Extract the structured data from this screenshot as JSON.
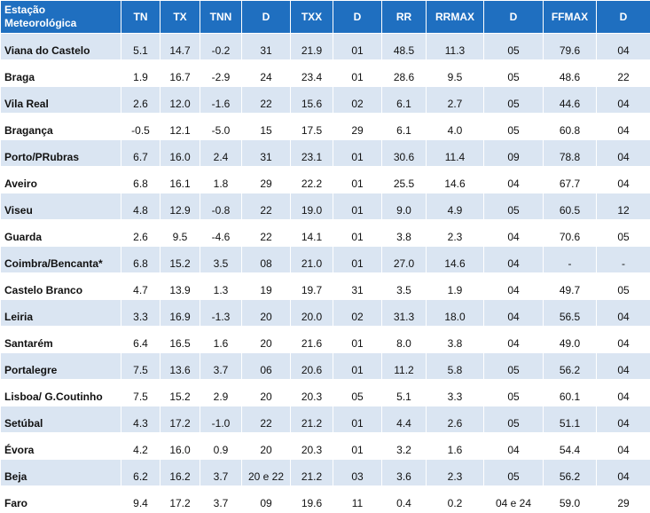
{
  "table": {
    "header": [
      "Estação Meteorológica",
      "TN",
      "TX",
      "TNN",
      "D",
      "TXX",
      "D",
      "RR",
      "RRMAX",
      "D",
      "FFMAX",
      "D"
    ],
    "rows": [
      [
        "Viana do Castelo",
        "5.1",
        "14.7",
        "-0.2",
        "31",
        "21.9",
        "01",
        "48.5",
        "11.3",
        "05",
        "79.6",
        "04"
      ],
      [
        "Braga",
        "1.9",
        "16.7",
        "-2.9",
        "24",
        "23.4",
        "01",
        "28.6",
        "9.5",
        "05",
        "48.6",
        "22"
      ],
      [
        "Vila Real",
        "2.6",
        "12.0",
        "-1.6",
        "22",
        "15.6",
        "02",
        "6.1",
        "2.7",
        "05",
        "44.6",
        "04"
      ],
      [
        "Bragança",
        "-0.5",
        "12.1",
        "-5.0",
        "15",
        "17.5",
        "29",
        "6.1",
        "4.0",
        "05",
        "60.8",
        "04"
      ],
      [
        "Porto/PRubras",
        "6.7",
        "16.0",
        "2.4",
        "31",
        "23.1",
        "01",
        "30.6",
        "11.4",
        "09",
        "78.8",
        "04"
      ],
      [
        "Aveiro",
        "6.8",
        "16.1",
        "1.8",
        "29",
        "22.2",
        "01",
        "25.5",
        "14.6",
        "04",
        "67.7",
        "04"
      ],
      [
        "Viseu",
        "4.8",
        "12.9",
        "-0.8",
        "22",
        "19.0",
        "01",
        "9.0",
        "4.9",
        "05",
        "60.5",
        "12"
      ],
      [
        "Guarda",
        "2.6",
        "9.5",
        "-4.6",
        "22",
        "14.1",
        "01",
        "3.8",
        "2.3",
        "04",
        "70.6",
        "05"
      ],
      [
        "Coimbra/Bencanta*",
        "6.8",
        "15.2",
        "3.5",
        "08",
        "21.0",
        "01",
        "27.0",
        "14.6",
        "04",
        "-",
        "-"
      ],
      [
        "Castelo Branco",
        "4.7",
        "13.9",
        "1.3",
        "19",
        "19.7",
        "31",
        "3.5",
        "1.9",
        "04",
        "49.7",
        "05"
      ],
      [
        "Leiria",
        "3.3",
        "16.9",
        "-1.3",
        "20",
        "20.0",
        "02",
        "31.3",
        "18.0",
        "04",
        "56.5",
        "04"
      ],
      [
        "Santarém",
        "6.4",
        "16.5",
        "1.6",
        "20",
        "21.6",
        "01",
        "8.0",
        "3.8",
        "04",
        "49.0",
        "04"
      ],
      [
        "Portalegre",
        "7.5",
        "13.6",
        "3.7",
        "06",
        "20.6",
        "01",
        "11.2",
        "5.8",
        "05",
        "56.2",
        "04"
      ],
      [
        "Lisboa/ G.Coutinho",
        "7.5",
        "15.2",
        "2.9",
        "20",
        "20.3",
        "05",
        "5.1",
        "3.3",
        "05",
        "60.1",
        "04"
      ],
      [
        "Setúbal",
        "4.3",
        "17.2",
        "-1.0",
        "22",
        "21.2",
        "01",
        "4.4",
        "2.6",
        "05",
        "51.1",
        "04"
      ],
      [
        "Évora",
        "4.2",
        "16.0",
        "0.9",
        "20",
        "20.3",
        "01",
        "3.2",
        "1.6",
        "04",
        "54.4",
        "04"
      ],
      [
        "Beja",
        "6.2",
        "16.2",
        "3.7",
        "20 e 22",
        "21.2",
        "03",
        "3.6",
        "2.3",
        "05",
        "56.2",
        "04"
      ],
      [
        "Faro",
        "9.4",
        "17.2",
        "3.7",
        "09",
        "19.6",
        "11",
        "0.4",
        "0.2",
        "04 e 24",
        "59.0",
        "29"
      ]
    ]
  }
}
